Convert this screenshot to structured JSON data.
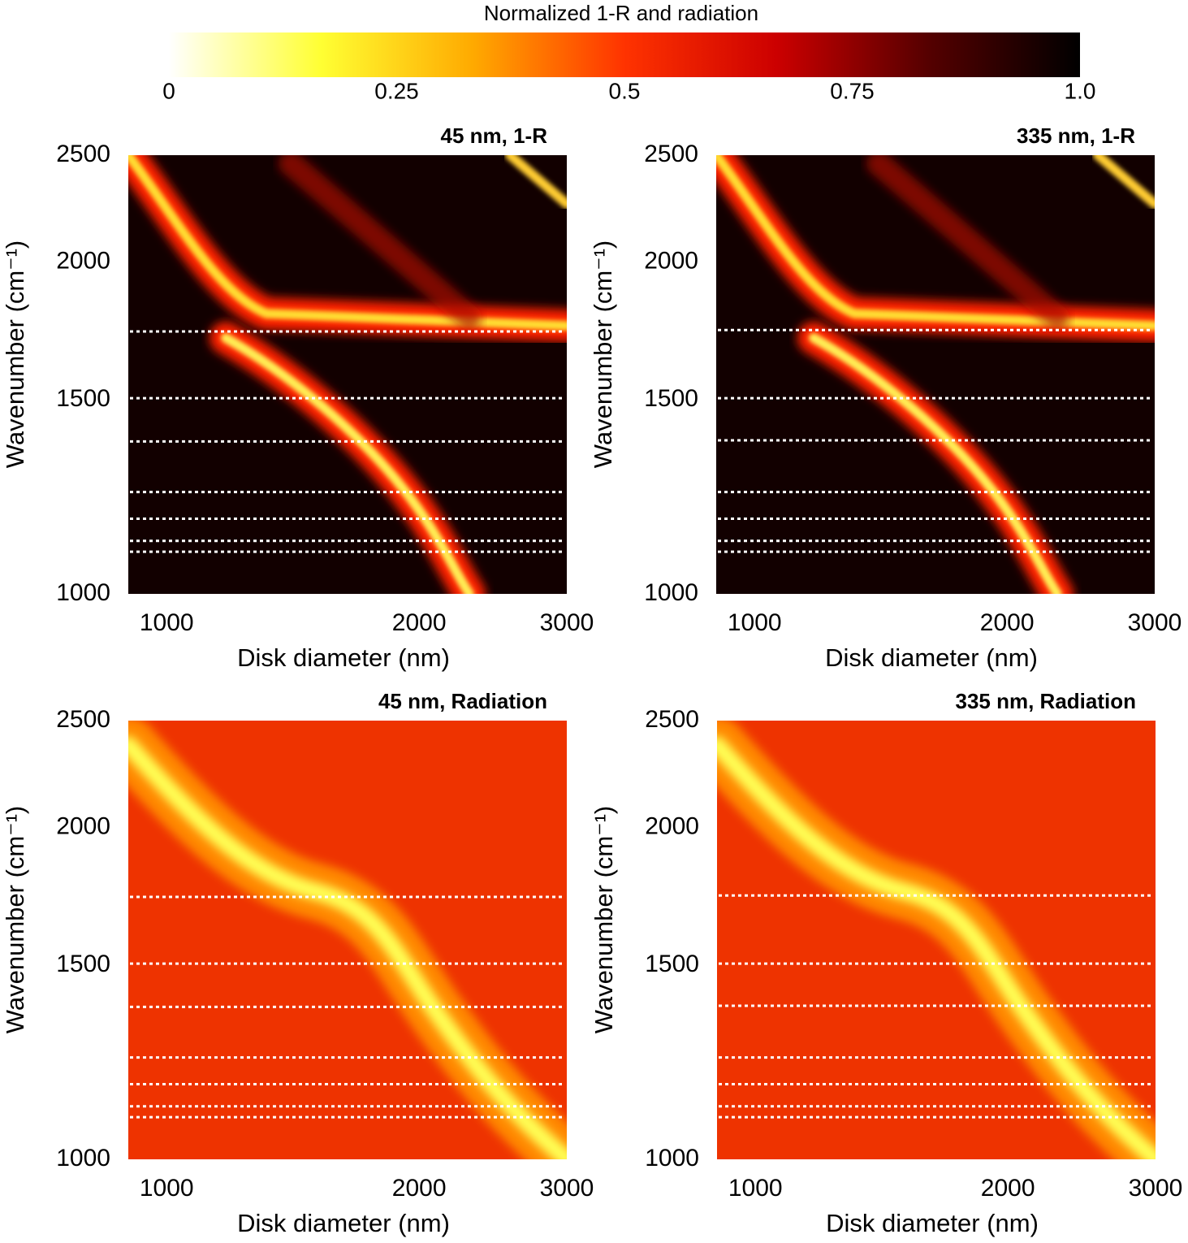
{
  "colorbar": {
    "title": "Normalized 1-R and radiation",
    "colors": [
      "#ffffff",
      "#ffff33",
      "#ffaa00",
      "#ff3300",
      "#cc0000",
      "#550000",
      "#000000"
    ],
    "lim": [
      0,
      1
    ],
    "ticks": [
      0,
      0.25,
      0.5,
      0.75,
      {
        "value": 1,
        "label": "1.0"
      }
    ]
  },
  "chart_data": [
    {
      "type": "heatmap",
      "title": "45 nm, 1-R",
      "x_label": "Disk diameter (nm)",
      "y_label": "Wavenumber (cm⁻¹)",
      "xlim": [
        900,
        3000
      ],
      "xticks": [
        1000,
        2000,
        3000
      ],
      "log_x": true,
      "ylim": [
        1000,
        2500
      ],
      "yticks": [
        1000,
        1500,
        2000,
        2500
      ],
      "log_y": true,
      "reference_lines": [
        1730,
        1505,
        1375,
        1237,
        1170,
        1117,
        1092
      ]
    },
    {
      "type": "heatmap",
      "title": "335 nm, 1-R",
      "x_label": "Disk diameter (nm)",
      "y_label": "Wavenumber (cm⁻¹)",
      "xlim": [
        900,
        3000
      ],
      "xticks": [
        1000,
        2000,
        3000
      ],
      "log_x": true,
      "ylim": [
        1000,
        2500
      ],
      "yticks": [
        1000,
        1500,
        2000,
        2500
      ],
      "log_y": true,
      "reference_lines": [
        1735,
        1505,
        1378,
        1237,
        1170,
        1117,
        1092
      ]
    },
    {
      "type": "heatmap",
      "title": "45 nm, Radiation",
      "x_label": "Disk diameter (nm)",
      "y_label": "Wavenumber (cm⁻¹)",
      "xlim": [
        900,
        3000
      ],
      "xticks": [
        1000,
        2000,
        3000
      ],
      "log_x": true,
      "ylim": [
        1000,
        2500
      ],
      "yticks": [
        1000,
        1500,
        2000,
        2500
      ],
      "log_y": true,
      "reference_lines": [
        1730,
        1505,
        1375,
        1237,
        1170,
        1117,
        1092
      ]
    },
    {
      "type": "heatmap",
      "title": "335 nm, Radiation",
      "x_label": "Disk diameter (nm)",
      "y_label": "Wavenumber (cm⁻¹)",
      "xlim": [
        900,
        3000
      ],
      "xticks": [
        1000,
        2000,
        3000
      ],
      "log_x": true,
      "ylim": [
        1000,
        2500
      ],
      "yticks": [
        1000,
        1500,
        2000,
        2500
      ],
      "log_y": true,
      "reference_lines": [
        1735,
        1505,
        1378,
        1237,
        1170,
        1117,
        1092
      ]
    }
  ]
}
